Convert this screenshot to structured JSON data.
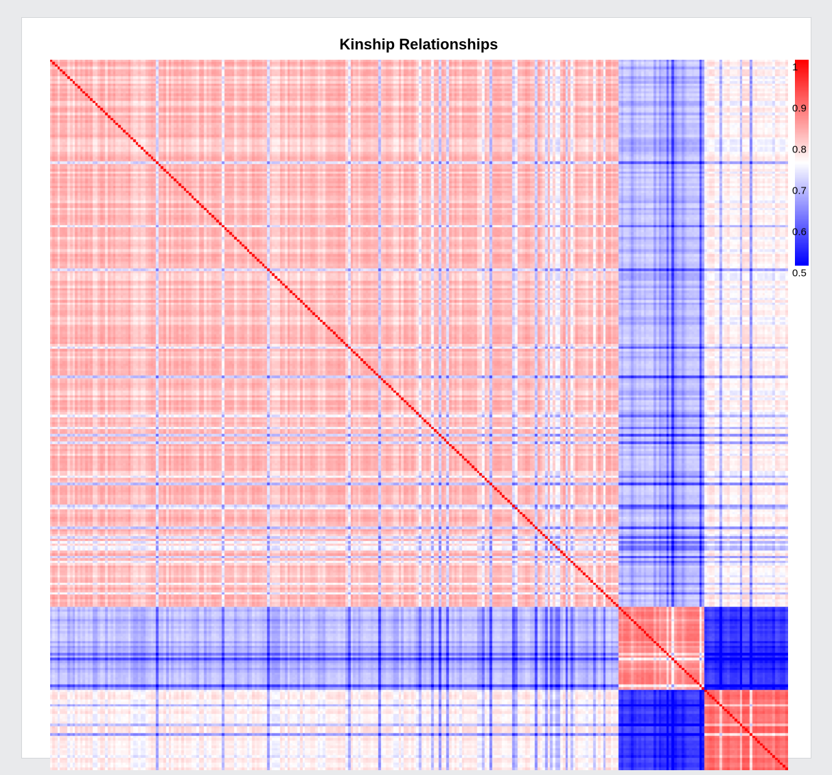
{
  "chart_data": {
    "type": "heatmap",
    "title": "Kinship Relationships",
    "xlabel": "",
    "ylabel": "",
    "n_individuals": 292,
    "diagonal_value": 1.0,
    "groups": [
      {
        "start": 0,
        "end": 225,
        "within_mean": 0.825
      },
      {
        "start": 225,
        "end": 259,
        "within_mean": 0.87
      },
      {
        "start": 259,
        "end": 292,
        "within_mean": 0.9
      }
    ],
    "between_group_means": {
      "g1_g2": 0.69,
      "g1_g3": 0.77,
      "g2_g3": 0.56
    },
    "colorbar": {
      "min": 0.5,
      "max": 1.0,
      "ticks": [
        {
          "value": 1.0,
          "label": "1"
        },
        {
          "value": 0.9,
          "label": "0.9"
        },
        {
          "value": 0.8,
          "label": "0.8"
        },
        {
          "value": 0.7,
          "label": "0.7"
        },
        {
          "value": 0.6,
          "label": "0.6"
        },
        {
          "value": 0.5,
          "label": "0.5"
        }
      ],
      "colors": {
        "low": "#0000ff",
        "mid": "#ffffff",
        "high": "#ff0000"
      },
      "mid_value": 0.75
    },
    "grid": false,
    "legend_position": "right"
  }
}
